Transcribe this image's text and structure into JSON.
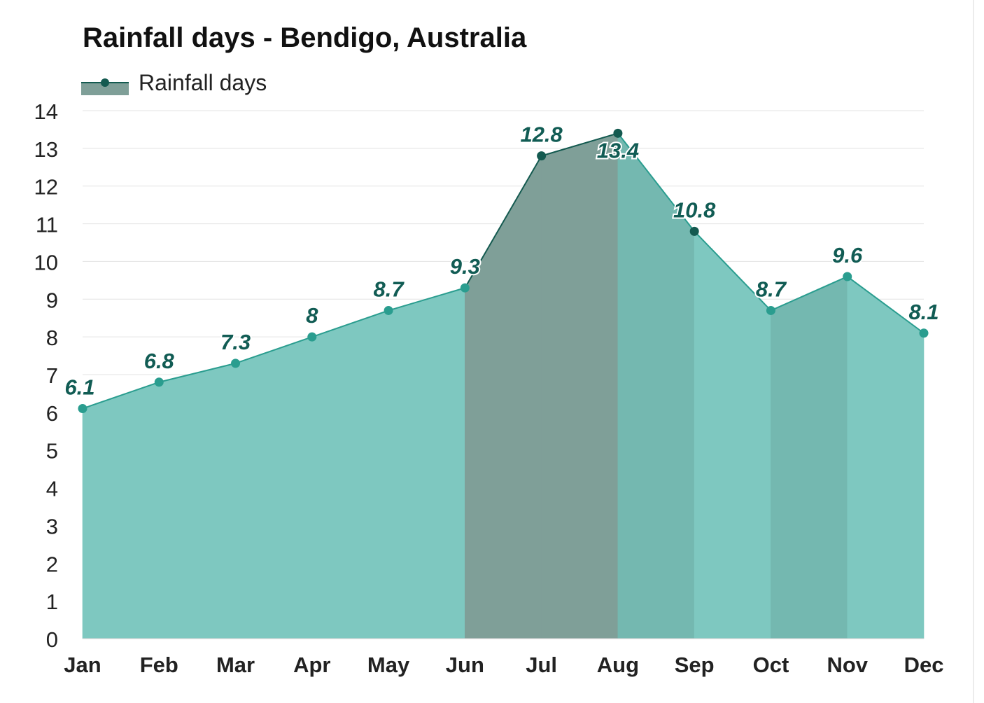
{
  "chart_data": {
    "type": "area",
    "title": "Rainfall days - Bendigo, Australia",
    "legend": {
      "label": "Rainfall days",
      "position": "top-left"
    },
    "categories": [
      "Jan",
      "Feb",
      "Mar",
      "Apr",
      "May",
      "Jun",
      "Jul",
      "Aug",
      "Sep",
      "Oct",
      "Nov",
      "Dec"
    ],
    "series": [
      {
        "name": "Rainfall days",
        "values": [
          6.1,
          6.8,
          7.3,
          8,
          8.7,
          9.3,
          12.8,
          13.4,
          10.8,
          8.7,
          9.6,
          8.1
        ],
        "value_labels": [
          "6.1",
          "6.8",
          "7.3",
          "8",
          "8.7",
          "9.3",
          "12.8",
          "13.4",
          "10.8",
          "8.7",
          "9.6",
          "8.1"
        ]
      }
    ],
    "ylim": [
      0,
      14
    ],
    "yticks": [
      "0",
      "1",
      "2",
      "3",
      "4",
      "5",
      "6",
      "7",
      "8",
      "9",
      "10",
      "11",
      "12",
      "13",
      "14"
    ],
    "grid": true,
    "xlabel": "",
    "ylabel": "",
    "colors": {
      "fill_light": "#7ec8c0",
      "fill_medium": "#74b8b0",
      "fill_dark": "#7f9f98",
      "line_light": "#2a9d8f",
      "line_dark": "#145a50",
      "label_color": "#115c54"
    }
  }
}
